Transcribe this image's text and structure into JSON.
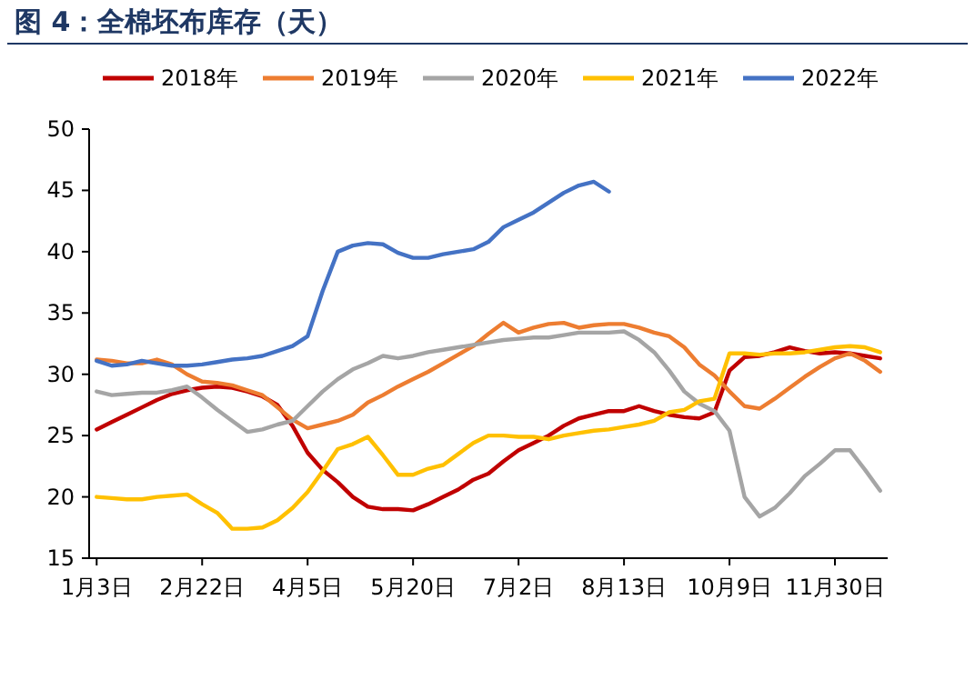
{
  "chart_data": {
    "type": "line",
    "title": "图 4：全棉坯布库存（天）",
    "categories": [
      "1月3日",
      null,
      null,
      null,
      null,
      null,
      null,
      "2月22日",
      null,
      null,
      null,
      null,
      null,
      null,
      "4月5日",
      null,
      null,
      null,
      null,
      null,
      null,
      "5月20日",
      null,
      null,
      null,
      null,
      null,
      null,
      "7月2日",
      null,
      null,
      null,
      null,
      null,
      null,
      "8月13日",
      null,
      null,
      null,
      null,
      null,
      null,
      "10月9日",
      null,
      null,
      null,
      null,
      null,
      null,
      "11月30日",
      null,
      null,
      null
    ],
    "series": [
      {
        "name": "2018年",
        "color": "#c00000",
        "values": [
          25.5,
          26.1,
          26.7,
          27.3,
          27.9,
          28.4,
          28.7,
          28.9,
          29.0,
          28.9,
          28.6,
          28.2,
          27.5,
          25.8,
          23.6,
          22.2,
          21.2,
          20.0,
          19.2,
          19.0,
          19.0,
          18.9,
          19.4,
          20.0,
          20.6,
          21.4,
          21.9,
          22.9,
          23.8,
          24.4,
          25.0,
          25.8,
          26.4,
          26.7,
          27.0,
          27.0,
          27.4,
          27.0,
          26.7,
          26.5,
          26.4,
          26.9,
          30.3,
          31.4,
          31.5,
          31.8,
          32.2,
          31.9,
          31.7,
          31.8,
          31.7,
          31.5,
          31.3
        ]
      },
      {
        "name": "2019年",
        "color": "#ed7d31",
        "values": [
          31.2,
          31.1,
          30.9,
          30.9,
          31.2,
          30.8,
          30.0,
          29.4,
          29.3,
          29.1,
          28.7,
          28.3,
          27.3,
          26.3,
          25.6,
          25.9,
          26.2,
          26.7,
          27.7,
          28.3,
          29.0,
          29.6,
          30.2,
          30.9,
          31.6,
          32.3,
          33.3,
          34.2,
          33.4,
          33.8,
          34.1,
          34.2,
          33.8,
          34.0,
          34.1,
          34.1,
          33.8,
          33.4,
          33.1,
          32.2,
          30.8,
          29.9,
          28.6,
          27.4,
          27.2,
          28.0,
          28.9,
          29.8,
          30.6,
          31.3,
          31.7,
          31.1,
          30.2
        ]
      },
      {
        "name": "2020年",
        "color": "#a5a5a5",
        "values": [
          28.6,
          28.3,
          28.4,
          28.5,
          28.5,
          28.7,
          29.0,
          28.1,
          27.1,
          26.2,
          25.3,
          25.5,
          25.9,
          26.2,
          27.4,
          28.6,
          29.6,
          30.4,
          30.9,
          31.5,
          31.3,
          31.5,
          31.8,
          32.0,
          32.2,
          32.4,
          32.6,
          32.8,
          32.9,
          33.0,
          33.0,
          33.2,
          33.4,
          33.4,
          33.4,
          33.5,
          32.8,
          31.8,
          30.3,
          28.6,
          27.6,
          27.0,
          25.4,
          20.0,
          18.4,
          19.1,
          20.3,
          21.7,
          22.7,
          23.8,
          23.8,
          22.2,
          20.5
        ]
      },
      {
        "name": "2021年",
        "color": "#ffc000",
        "values": [
          20.0,
          19.9,
          19.8,
          19.8,
          20.0,
          20.1,
          20.2,
          19.4,
          18.7,
          17.4,
          17.4,
          17.5,
          18.1,
          19.1,
          20.4,
          22.1,
          23.9,
          24.3,
          24.9,
          23.4,
          21.8,
          21.8,
          22.3,
          22.6,
          23.5,
          24.4,
          25.0,
          25.0,
          24.9,
          24.9,
          24.7,
          25.0,
          25.2,
          25.4,
          25.5,
          25.7,
          25.9,
          26.2,
          26.9,
          27.1,
          27.8,
          28.0,
          31.7,
          31.7,
          31.6,
          31.7,
          31.7,
          31.8,
          32.0,
          32.2,
          32.3,
          32.2,
          31.8
        ]
      },
      {
        "name": "2022年",
        "color": "#4472c4",
        "values": [
          31.1,
          30.7,
          30.8,
          31.1,
          30.9,
          30.7,
          30.7,
          30.8,
          31.0,
          31.2,
          31.3,
          31.5,
          31.9,
          32.3,
          33.1,
          36.8,
          40.0,
          40.5,
          40.7,
          40.6,
          39.9,
          39.5,
          39.5,
          39.8,
          40.0,
          40.2,
          40.8,
          42.0,
          42.6,
          43.2,
          44.0,
          44.8,
          45.4,
          45.7,
          44.9,
          null,
          null,
          null,
          null,
          null,
          null,
          null,
          null,
          null,
          null,
          null,
          null,
          null,
          null,
          null,
          null,
          null,
          null
        ]
      }
    ],
    "ylim": [
      15,
      50
    ],
    "yticks": [
      15,
      20,
      25,
      30,
      35,
      40,
      45,
      50
    ],
    "grid": false,
    "legend": "top",
    "marker": "none",
    "line_style": "solid"
  }
}
